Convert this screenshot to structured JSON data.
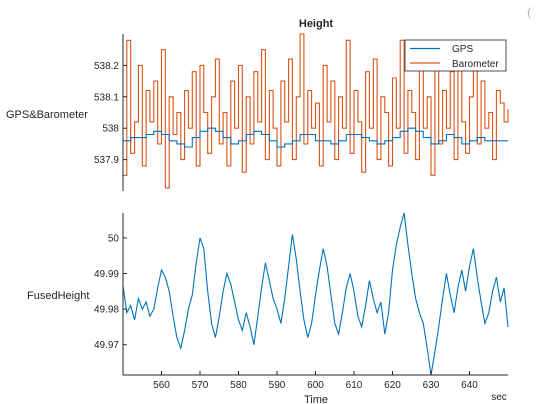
{
  "colors": {
    "gps": "#0072BD",
    "barometer": "#D95319",
    "axis": "#262626"
  },
  "toolbar": {
    "icon": "corner-paren-icon",
    "glyph": "("
  },
  "chart_data": [
    {
      "type": "line",
      "title": "Height",
      "ylabel": "GPS&Barometer",
      "xlim": [
        550,
        650
      ],
      "ylim": [
        537.8,
        538.3
      ],
      "yticks": [
        537.9,
        538,
        538.1,
        538.2
      ],
      "ytick_labels": [
        "537.9",
        "538",
        "538.1",
        "538.2"
      ],
      "legend": {
        "placement": "top-right",
        "entries": [
          "GPS",
          "Barometer"
        ]
      },
      "series": [
        {
          "name": "GPS",
          "color": "#0072BD",
          "step": true,
          "x": [
            550,
            552,
            554,
            556,
            558,
            560,
            562,
            564,
            566,
            568,
            570,
            572,
            574,
            576,
            578,
            580,
            582,
            584,
            586,
            588,
            590,
            592,
            594,
            596,
            598,
            600,
            602,
            604,
            606,
            608,
            610,
            612,
            614,
            616,
            618,
            620,
            622,
            624,
            626,
            628,
            630,
            632,
            634,
            636,
            638,
            640,
            642,
            644,
            646,
            648,
            650
          ],
          "y": [
            537.96,
            537.97,
            537.97,
            537.98,
            537.99,
            537.98,
            537.96,
            537.95,
            537.94,
            537.97,
            537.99,
            538.0,
            537.99,
            537.97,
            537.95,
            537.96,
            537.98,
            537.99,
            537.98,
            537.96,
            537.94,
            537.95,
            537.96,
            537.98,
            537.98,
            537.96,
            537.96,
            537.95,
            537.96,
            537.98,
            537.98,
            537.97,
            537.96,
            537.95,
            537.96,
            537.97,
            537.99,
            538.0,
            537.99,
            537.97,
            537.95,
            537.96,
            537.98,
            537.97,
            537.95,
            537.96,
            537.97,
            537.96,
            537.96,
            537.96,
            537.96
          ]
        },
        {
          "name": "Barometer",
          "color": "#D95319",
          "step": true,
          "x": [
            550,
            551,
            552,
            553,
            554,
            555,
            556,
            557,
            558,
            559,
            560,
            561,
            562,
            563,
            564,
            565,
            566,
            567,
            568,
            569,
            570,
            571,
            572,
            573,
            574,
            575,
            576,
            577,
            578,
            579,
            580,
            581,
            582,
            583,
            584,
            585,
            586,
            587,
            588,
            589,
            590,
            591,
            592,
            593,
            594,
            595,
            596,
            597,
            598,
            599,
            600,
            601,
            602,
            603,
            604,
            605,
            606,
            607,
            608,
            609,
            610,
            611,
            612,
            613,
            614,
            615,
            616,
            617,
            618,
            619,
            620,
            621,
            622,
            623,
            624,
            625,
            626,
            627,
            628,
            629,
            630,
            631,
            632,
            633,
            634,
            635,
            636,
            637,
            638,
            639,
            640,
            641,
            642,
            643,
            644,
            645,
            646,
            647,
            648,
            649,
            650
          ],
          "y": [
            537.85,
            538.28,
            537.92,
            538.02,
            538.2,
            537.88,
            538.12,
            538.02,
            538.15,
            537.95,
            538.25,
            537.81,
            538.1,
            537.98,
            538.05,
            537.9,
            538.12,
            538.0,
            538.18,
            537.88,
            538.2,
            538.05,
            537.92,
            538.1,
            538.22,
            537.95,
            538.05,
            537.88,
            538.15,
            538.0,
            538.2,
            537.86,
            538.1,
            537.95,
            538.18,
            538.02,
            538.25,
            537.9,
            538.12,
            538.0,
            537.88,
            538.15,
            538.02,
            538.22,
            537.9,
            538.1,
            538.3,
            537.95,
            538.12,
            538.0,
            538.08,
            537.88,
            538.2,
            538.02,
            538.15,
            537.9,
            538.1,
            538.0,
            538.28,
            537.92,
            538.12,
            538.02,
            537.86,
            538.18,
            538.0,
            538.22,
            537.9,
            538.1,
            538.05,
            537.88,
            538.16,
            538.0,
            538.28,
            537.92,
            538.12,
            538.05,
            537.9,
            538.2,
            538.0,
            538.1,
            537.85,
            538.22,
            537.95,
            538.12,
            538.0,
            538.18,
            537.9,
            538.25,
            538.02,
            537.92,
            538.1,
            538.2,
            537.95,
            538.15,
            538.0,
            538.05,
            537.9,
            538.12,
            538.08,
            538.02,
            538.06
          ]
        }
      ]
    },
    {
      "type": "line",
      "title": "",
      "ylabel": "FusedHeight",
      "xlabel": "Time",
      "xunit": "sec",
      "xlim": [
        550,
        650
      ],
      "xticks": [
        560,
        570,
        580,
        590,
        600,
        610,
        620,
        630,
        640
      ],
      "xtick_labels": [
        "560",
        "570",
        "580",
        "590",
        "600",
        "610",
        "620",
        "630",
        "640"
      ],
      "ylim": [
        49.9615,
        50.007
      ],
      "yticks": [
        49.97,
        49.98,
        49.99,
        50
      ],
      "ytick_labels": [
        "49.97",
        "49.98",
        "49.99",
        "50"
      ],
      "series": [
        {
          "name": "FusedHeight",
          "color": "#0072BD",
          "x": [
            550,
            551,
            552,
            553,
            554,
            555,
            556,
            557,
            558,
            559,
            560,
            561,
            562,
            563,
            564,
            565,
            566,
            567,
            568,
            569,
            570,
            571,
            572,
            573,
            574,
            575,
            576,
            577,
            578,
            579,
            580,
            581,
            582,
            583,
            584,
            585,
            586,
            587,
            588,
            589,
            590,
            591,
            592,
            593,
            594,
            595,
            596,
            597,
            598,
            599,
            600,
            601,
            602,
            603,
            604,
            605,
            606,
            607,
            608,
            609,
            610,
            611,
            612,
            613,
            614,
            615,
            616,
            617,
            618,
            619,
            620,
            621,
            622,
            623,
            624,
            625,
            626,
            627,
            628,
            629,
            630,
            631,
            632,
            633,
            634,
            635,
            636,
            637,
            638,
            639,
            640,
            641,
            642,
            643,
            644,
            645,
            646,
            647,
            648,
            649,
            650
          ],
          "y": [
            49.9865,
            49.979,
            49.981,
            49.977,
            49.983,
            49.98,
            49.982,
            49.978,
            49.98,
            49.986,
            49.991,
            49.989,
            49.985,
            49.978,
            49.972,
            49.969,
            49.974,
            49.98,
            49.984,
            49.993,
            50.0,
            49.997,
            49.985,
            49.976,
            49.972,
            49.978,
            49.985,
            49.99,
            49.987,
            49.982,
            49.977,
            49.974,
            49.979,
            49.975,
            49.97,
            49.978,
            49.986,
            49.993,
            49.988,
            49.983,
            49.98,
            49.976,
            49.983,
            49.992,
            50.001,
            49.994,
            49.985,
            49.977,
            49.972,
            49.976,
            49.984,
            49.991,
            49.997,
            49.992,
            49.984,
            49.976,
            49.973,
            49.979,
            49.986,
            49.99,
            49.985,
            49.978,
            49.975,
            49.981,
            49.988,
            49.983,
            49.979,
            49.982,
            49.973,
            49.979,
            49.991,
            49.998,
            50.003,
            50.007,
            49.998,
            49.99,
            49.983,
            49.979,
            49.976,
            49.969,
            49.9615,
            49.968,
            49.975,
            49.983,
            49.99,
            49.984,
            49.979,
            49.986,
            49.991,
            49.985,
            49.992,
            49.997,
            49.989,
            49.982,
            49.976,
            49.979,
            49.985,
            49.989,
            49.982,
            49.986,
            49.975
          ]
        }
      ]
    }
  ]
}
